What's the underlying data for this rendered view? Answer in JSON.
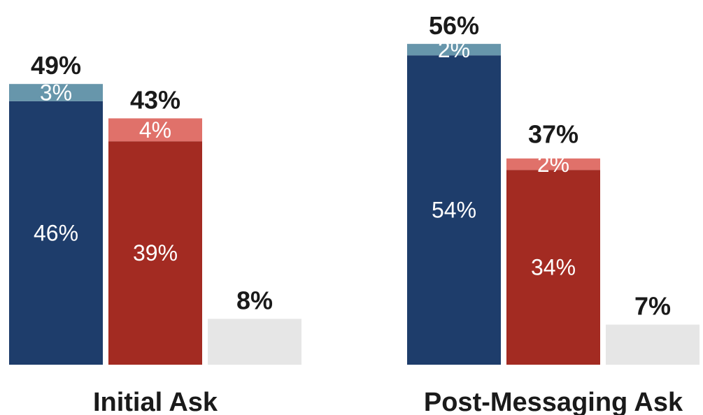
{
  "chart_data": {
    "type": "bar",
    "stacked": true,
    "grid": false,
    "ylim": [
      0,
      60
    ],
    "categories": [
      "Initial Ask",
      "Post-Messaging Ask"
    ],
    "bars_per_category": [
      [
        {
          "total": 49,
          "total_label": "49%",
          "segments": [
            {
              "value": 46,
              "label": "46%",
              "color": "#1e3d6b"
            },
            {
              "value": 3,
              "label": "3%",
              "color": "#6796ab"
            }
          ]
        },
        {
          "total": 43,
          "total_label": "43%",
          "segments": [
            {
              "value": 39,
              "label": "39%",
              "color": "#a32b22"
            },
            {
              "value": 4,
              "label": "4%",
              "color": "#e0716a"
            }
          ]
        },
        {
          "total": 8,
          "total_label": "8%",
          "segments": [
            {
              "value": 8,
              "label": "",
              "color": "#e6e6e6"
            }
          ]
        }
      ],
      [
        {
          "total": 56,
          "total_label": "56%",
          "segments": [
            {
              "value": 54,
              "label": "54%",
              "color": "#1e3d6b"
            },
            {
              "value": 2,
              "label": "2%",
              "color": "#6796ab"
            }
          ]
        },
        {
          "total": 37,
          "total_label": "37%",
          "segments": [
            {
              "value": 34,
              "label": "34%",
              "color": "#a32b22"
            },
            {
              "value": 2,
              "label": "2%",
              "color": "#e0716a"
            }
          ]
        },
        {
          "total": 7,
          "total_label": "7%",
          "segments": [
            {
              "value": 7,
              "label": "",
              "color": "#e6e6e6"
            }
          ]
        }
      ]
    ]
  }
}
